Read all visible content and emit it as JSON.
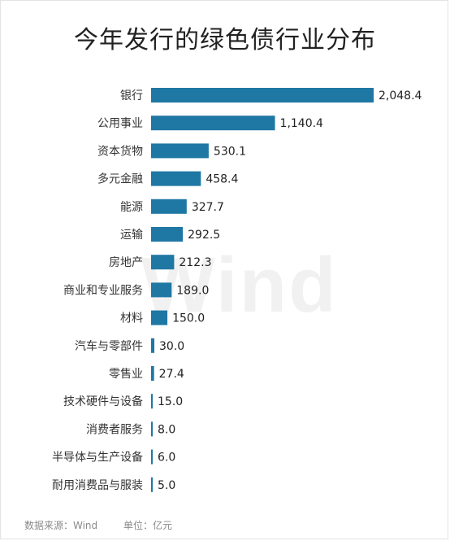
{
  "title": "今年发行的绿色债行业分布",
  "watermark": "Wind",
  "footer": {
    "source": "数据来源：Wind",
    "unit": "单位：亿元"
  },
  "colors": {
    "bar": "#1f77a4"
  },
  "chart_data": {
    "type": "bar",
    "orientation": "horizontal",
    "title": "今年发行的绿色债行业分布",
    "categories": [
      "银行",
      "公用事业",
      "资本货物",
      "多元金融",
      "能源",
      "运输",
      "房地产",
      "商业和专业服务",
      "材料",
      "汽车与零部件",
      "零售业",
      "技术硬件与设备",
      "消费者服务",
      "半导体与生产设备",
      "耐用消费品与服装"
    ],
    "values": [
      2048.4,
      1140.4,
      530.1,
      458.4,
      327.7,
      292.5,
      212.3,
      189.0,
      150.0,
      30.0,
      27.4,
      15.0,
      8.0,
      6.0,
      5.0
    ],
    "value_labels": [
      "2,048.4",
      "1,140.4",
      "530.1",
      "458.4",
      "327.7",
      "292.5",
      "212.3",
      "189.0",
      "150.0",
      "30.0",
      "27.4",
      "15.0",
      "8.0",
      "6.0",
      "5.0"
    ],
    "xlim": [
      0,
      2048.4
    ],
    "grid": false,
    "legend": "none"
  }
}
